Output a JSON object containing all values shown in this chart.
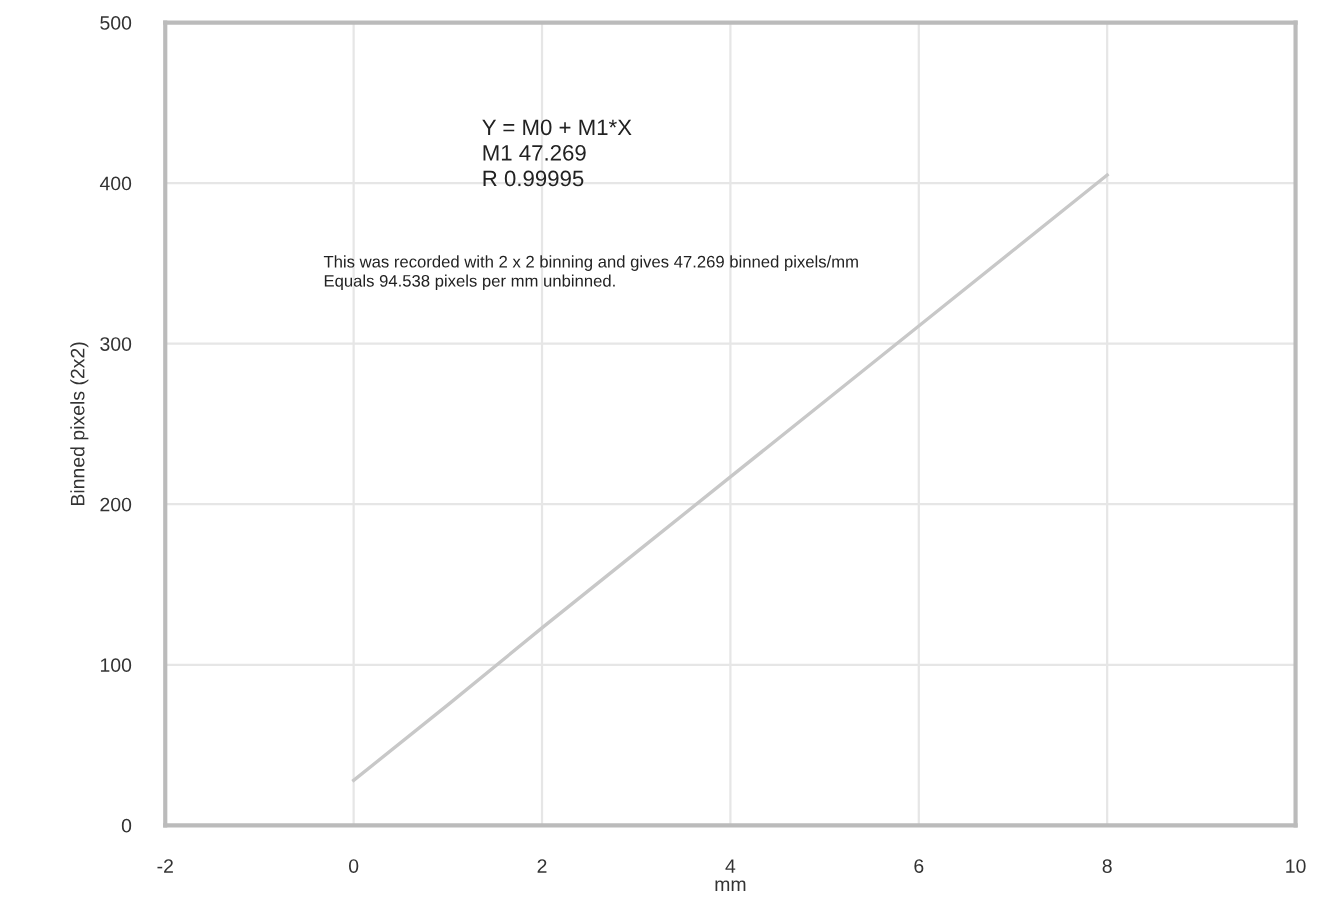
{
  "chart_data": {
    "type": "line",
    "xlabel": "mm",
    "ylabel": "Binned pixels (2x2)",
    "x": [
      0,
      1,
      2,
      3,
      4,
      5,
      6,
      7,
      8
    ],
    "series": [
      {
        "color": "#c8c8c8",
        "values": [
          28,
          75,
          123,
          170,
          217,
          264,
          311,
          358,
          405
        ]
      }
    ],
    "xlim": [
      -2,
      10
    ],
    "xticks": [
      -2,
      0,
      2,
      4,
      6,
      8,
      10
    ],
    "ylim": [
      0,
      500
    ],
    "yticks": [
      0,
      100,
      200,
      300,
      400,
      500
    ],
    "grid": true,
    "marker": "none",
    "line_style": "solid",
    "annotations": [
      "Y = M0 + M1*X\nM1 47.269\nR 0.99995",
      "This was recorded with 2 x 2 binning and gives 47.269 binned pixels/mm\nEquals 94.538 pixels per mm unbinned."
    ]
  }
}
